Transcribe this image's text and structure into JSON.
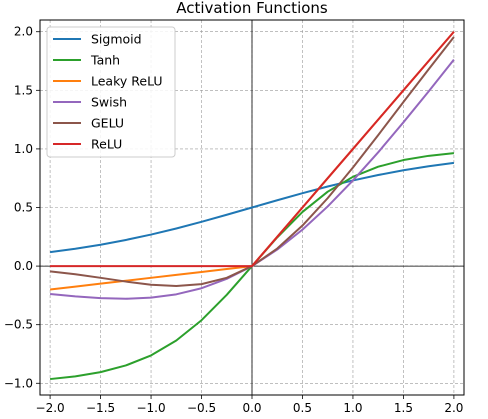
{
  "chart_data": {
    "type": "line",
    "title": "Activation Functions",
    "xlabel": "",
    "ylabel": "",
    "xlim": [
      -2.1,
      2.1
    ],
    "ylim": [
      -1.1,
      2.1
    ],
    "grid": true,
    "legend_position": "top-left",
    "x_ticks": [
      -2.0,
      -1.5,
      -1.0,
      -0.5,
      0.0,
      0.5,
      1.0,
      1.5,
      2.0
    ],
    "x_tick_labels": [
      "−2.0",
      "−1.5",
      "−1.0",
      "−0.5",
      "0.0",
      "0.5",
      "1.0",
      "1.5",
      "2.0"
    ],
    "y_ticks": [
      -1.0,
      -0.5,
      0.0,
      0.5,
      1.0,
      1.5,
      2.0
    ],
    "y_tick_labels": [
      "−1.0",
      "−0.5",
      "0.0",
      "0.5",
      "1.0",
      "1.5",
      "2.0"
    ],
    "x": [
      -2.0,
      -1.75,
      -1.5,
      -1.25,
      -1.0,
      -0.75,
      -0.5,
      -0.25,
      0.0,
      0.25,
      0.5,
      0.75,
      1.0,
      1.25,
      1.5,
      1.75,
      2.0
    ],
    "series": [
      {
        "name": "Sigmoid",
        "color": "#1f77b4",
        "values": [
          0.119,
          0.148,
          0.182,
          0.223,
          0.269,
          0.321,
          0.378,
          0.438,
          0.5,
          0.562,
          0.622,
          0.679,
          0.731,
          0.777,
          0.818,
          0.852,
          0.881
        ]
      },
      {
        "name": "Tanh",
        "color": "#2ca02c",
        "values": [
          -0.964,
          -0.941,
          -0.905,
          -0.848,
          -0.762,
          -0.635,
          -0.462,
          -0.245,
          0.0,
          0.245,
          0.462,
          0.635,
          0.762,
          0.848,
          0.905,
          0.941,
          0.964
        ]
      },
      {
        "name": "Leaky ReLU",
        "color": "#ff7f0e",
        "values": [
          -0.2,
          -0.175,
          -0.15,
          -0.125,
          -0.1,
          -0.075,
          -0.05,
          -0.025,
          0.0,
          0.25,
          0.5,
          0.75,
          1.0,
          1.25,
          1.5,
          1.75,
          2.0
        ]
      },
      {
        "name": "Swish",
        "color": "#9467bd",
        "values": [
          -0.238,
          -0.258,
          -0.273,
          -0.279,
          -0.269,
          -0.241,
          -0.189,
          -0.109,
          0.0,
          0.141,
          0.311,
          0.509,
          0.731,
          0.971,
          1.227,
          1.491,
          1.762
        ]
      },
      {
        "name": "GELU",
        "color": "#8c564b",
        "values": [
          -0.045,
          -0.07,
          -0.1,
          -0.132,
          -0.159,
          -0.17,
          -0.154,
          -0.1,
          0.0,
          0.15,
          0.346,
          0.58,
          0.841,
          1.118,
          1.4,
          1.68,
          1.955
        ]
      },
      {
        "name": "ReLU",
        "color": "#d62728",
        "values": [
          0.0,
          0.0,
          0.0,
          0.0,
          0.0,
          0.0,
          0.0,
          0.0,
          0.0,
          0.25,
          0.5,
          0.75,
          1.0,
          1.25,
          1.5,
          1.75,
          2.0
        ]
      }
    ]
  }
}
